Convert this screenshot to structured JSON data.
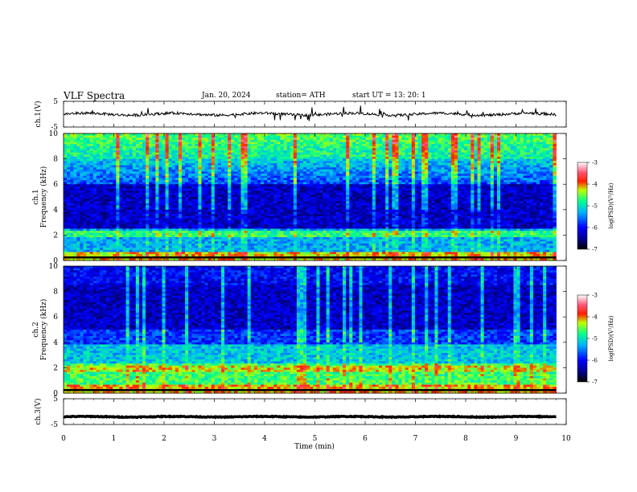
{
  "header": {
    "title": "VLF  Spectra",
    "date": "Jan. 20, 2024",
    "station": "station= ATH",
    "start": "start  UT  =    13: 20: 1"
  },
  "chart_data": [
    {
      "type": "line",
      "name": "ch1-waveform",
      "ylabel": "ch.1(V)",
      "ylim": [
        -5,
        5
      ],
      "y_ticks": [
        "5",
        "-5"
      ],
      "x_range": [
        0,
        10
      ],
      "data_extent": [
        0,
        9.8
      ],
      "baseline": 0,
      "amplitude": 1,
      "color": "#000000"
    },
    {
      "type": "heatmap",
      "name": "ch1-spectrogram",
      "ylabel": "ch.1\nFrequency  (kHz)",
      "ylim": [
        0,
        10
      ],
      "y_ticks": [
        "0",
        "2",
        "4",
        "6",
        "8",
        "10"
      ],
      "x_range": [
        0,
        10
      ],
      "data_extent": [
        0,
        9.8
      ],
      "colorbar": {
        "label": "log(PSD)(V²/Hz)",
        "range": [
          -7,
          -3
        ],
        "ticks": [
          "-3",
          "-4",
          "-5",
          "-6",
          "-7"
        ]
      }
    },
    {
      "type": "heatmap",
      "name": "ch2-spectrogram",
      "ylabel": "ch.2\nFrequency  (kHz)",
      "ylim": [
        0,
        10
      ],
      "y_ticks": [
        "0",
        "2",
        "4",
        "6",
        "8",
        "10"
      ],
      "x_range": [
        0,
        10
      ],
      "data_extent": [
        0,
        9.8
      ],
      "colorbar": {
        "label": "log(PSD)(V²/Hz)",
        "range": [
          -7,
          -3
        ],
        "ticks": [
          "-3",
          "-4",
          "-5",
          "-6",
          "-7"
        ]
      }
    },
    {
      "type": "line",
      "name": "ch3-waveform",
      "ylabel": "ch.3(V)",
      "ylim": [
        -5,
        5
      ],
      "y_ticks": [
        "5",
        "-5"
      ],
      "x_range": [
        0,
        10
      ],
      "data_extent": [
        0,
        9.8
      ],
      "baseline": -2,
      "amplitude": 0.3,
      "color": "#000000"
    }
  ],
  "x_axis": {
    "label": "Time  (min)",
    "range": [
      0,
      10
    ],
    "ticks": [
      "0",
      "1",
      "2",
      "3",
      "4",
      "5",
      "6",
      "7",
      "8",
      "9",
      "10"
    ]
  }
}
